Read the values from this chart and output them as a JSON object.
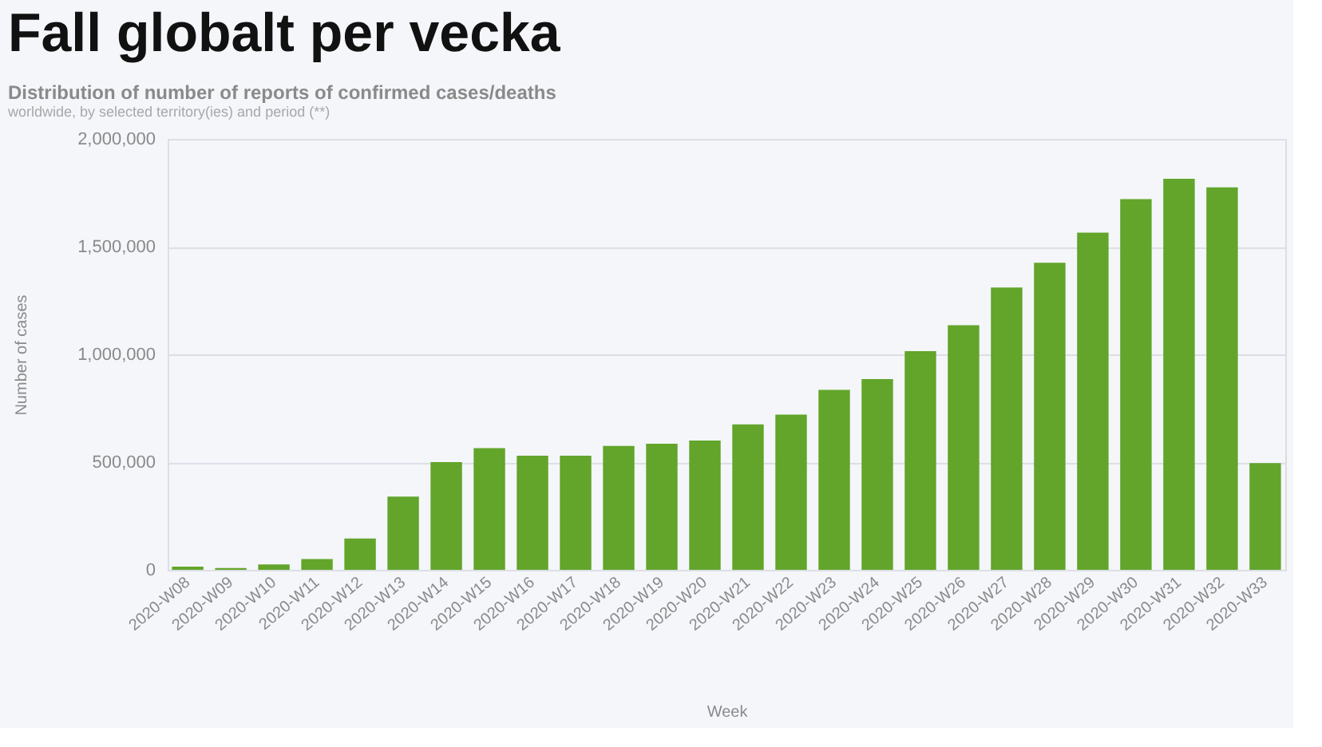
{
  "chart_data": {
    "type": "bar",
    "title": "Fall globalt per vecka",
    "subtitle": "Distribution of number of reports of confirmed cases/deaths",
    "annotations": [
      "worldwide, by selected territory(ies) and period (**)"
    ],
    "xlabel": "Week",
    "ylabel": "Number of cases",
    "categories": [
      "2020-W08",
      "2020-W09",
      "2020-W10",
      "2020-W11",
      "2020-W12",
      "2020-W13",
      "2020-W14",
      "2020-W15",
      "2020-W16",
      "2020-W17",
      "2020-W18",
      "2020-W19",
      "2020-W20",
      "2020-W21",
      "2020-W22",
      "2020-W23",
      "2020-W24",
      "2020-W25",
      "2020-W26",
      "2020-W27",
      "2020-W28",
      "2020-W29",
      "2020-W30",
      "2020-W31",
      "2020-W32",
      "2020-W33"
    ],
    "values": [
      15000,
      8000,
      25000,
      50000,
      145000,
      340000,
      500000,
      565000,
      530000,
      530000,
      575000,
      585000,
      600000,
      675000,
      720000,
      835000,
      885000,
      1015000,
      1135000,
      1310000,
      1425000,
      1565000,
      1720000,
      1815000,
      1775000,
      495000
    ],
    "color": "#62a52a",
    "ylim": [
      0,
      2000000
    ],
    "yticks": [
      0,
      {
        "value": 500000,
        "label": "500,000"
      },
      {
        "value": 1000000,
        "label": "1,000,000"
      },
      {
        "value": 1500000,
        "label": "1,500,000"
      },
      {
        "value": 2000000,
        "label": "2,000,000"
      }
    ],
    "grid": "y"
  }
}
